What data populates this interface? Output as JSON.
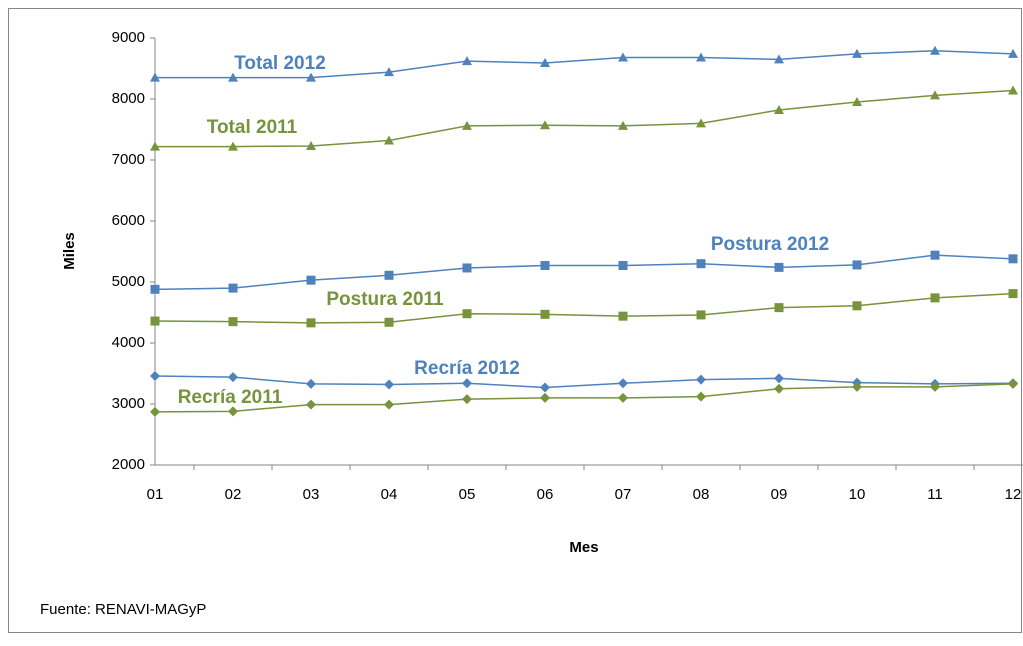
{
  "chart_data": {
    "type": "line",
    "x_label": "Mes",
    "y_label": "Miles",
    "note": "Fuente: RENAVI-MAGyP",
    "categories": [
      "01",
      "02",
      "03",
      "04",
      "05",
      "06",
      "07",
      "08",
      "09",
      "10",
      "11",
      "12"
    ],
    "ylim": [
      2000,
      9000
    ],
    "yticks": [
      2000,
      3000,
      4000,
      5000,
      6000,
      7000,
      8000,
      9000
    ],
    "series": [
      {
        "name": "Total 2012",
        "color": "#4f81bd",
        "marker": "triangle",
        "values": [
          8350,
          8350,
          8350,
          8440,
          8620,
          8590,
          8680,
          8680,
          8650,
          8740,
          8790,
          8740
        ]
      },
      {
        "name": "Total 2011",
        "color": "#77933c",
        "marker": "triangle",
        "values": [
          7220,
          7220,
          7230,
          7320,
          7560,
          7570,
          7560,
          7600,
          7820,
          7950,
          8060,
          8140
        ]
      },
      {
        "name": "Postura 2012",
        "color": "#4f81bd",
        "marker": "square",
        "values": [
          4880,
          4900,
          5030,
          5110,
          5230,
          5270,
          5270,
          5300,
          5240,
          5280,
          5440,
          5380
        ]
      },
      {
        "name": "Postura 2011",
        "color": "#77933c",
        "marker": "square",
        "values": [
          4360,
          4350,
          4330,
          4340,
          4480,
          4470,
          4440,
          4460,
          4580,
          4610,
          4740,
          4810
        ]
      },
      {
        "name": "Recría 2012",
        "color": "#4f81bd",
        "marker": "diamond",
        "values": [
          3460,
          3440,
          3330,
          3320,
          3340,
          3270,
          3340,
          3400,
          3420,
          3350,
          3330,
          3340
        ]
      },
      {
        "name": "Recría 2011",
        "color": "#77933c",
        "marker": "diamond",
        "values": [
          2870,
          2880,
          2990,
          2990,
          3080,
          3100,
          3100,
          3120,
          3250,
          3280,
          3280,
          3330
        ]
      }
    ]
  }
}
